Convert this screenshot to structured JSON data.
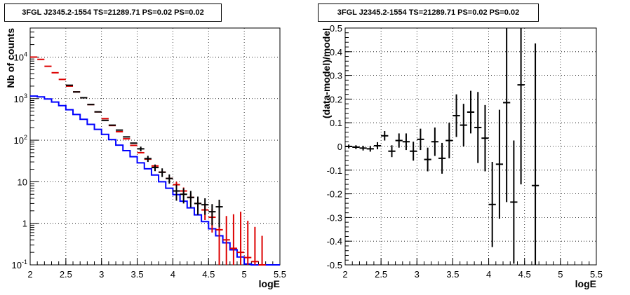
{
  "charts": {
    "left_title": "3FGL J2345.2-1554 TS=21289.71 PS=0.02 PS=0.02",
    "right_title": "3FGL J2345.2-1554 TS=21289.71 PS=0.02 PS=0.02"
  },
  "chart_data": [
    {
      "type": "line",
      "title": "3FGL J2345.2-1554 TS=21289.71 PS=0.02 PS=0.02",
      "xlabel": "logE",
      "ylabel": "Nb of counts",
      "xlim": [
        2,
        5.5
      ],
      "ylim": [
        0.1,
        50000
      ],
      "yscale": "log",
      "grid": true,
      "x_ticks": [
        "2",
        "2.5",
        "3",
        "3.5",
        "4",
        "4.5",
        "5",
        "5.5"
      ],
      "y_ticks": [
        {
          "value": 0.1,
          "base": "10",
          "exp": "-1"
        },
        {
          "value": 1,
          "base": "1",
          "exp": ""
        },
        {
          "value": 10,
          "base": "10",
          "exp": ""
        },
        {
          "value": 100,
          "base": "10",
          "exp": "2"
        },
        {
          "value": 1000,
          "base": "10",
          "exp": "3"
        },
        {
          "value": 10000,
          "base": "10",
          "exp": "4"
        }
      ],
      "bin_edges": [
        2.0,
        2.1,
        2.2,
        2.3,
        2.4,
        2.5,
        2.6,
        2.7,
        2.8,
        2.9,
        3.0,
        3.1,
        3.2,
        3.3,
        3.4,
        3.5,
        3.6,
        3.7,
        3.8,
        3.9,
        4.0,
        4.1,
        4.2,
        4.3,
        4.4,
        4.5,
        4.6,
        4.7,
        4.8,
        4.9,
        5.0,
        5.1,
        5.2,
        5.3,
        5.4,
        5.5
      ],
      "series": [
        {
          "role": "model",
          "color": "#0000ff",
          "values": [
            1150,
            1100,
            980,
            830,
            680,
            540,
            415,
            318,
            240,
            182,
            138,
            103,
            76,
            56,
            40,
            28.5,
            20.5,
            14.5,
            10,
            7,
            4.9,
            3.4,
            2.35,
            1.6,
            1.1,
            0.74,
            0.5,
            0.34,
            0.23,
            0.155,
            0.105,
            0.1,
            0.1,
            0.1,
            0.1
          ]
        },
        {
          "role": "red-points",
          "color": "#dd0000",
          "x": [
            2.05,
            2.15,
            2.25,
            2.35,
            2.45,
            2.55,
            2.65,
            2.75,
            2.85,
            2.95,
            3.05,
            3.15,
            3.25,
            3.35,
            3.45,
            3.55,
            3.65,
            3.75,
            3.85,
            3.95,
            4.05,
            4.15,
            4.25,
            4.35,
            4.45,
            4.55,
            4.65,
            4.75,
            4.85,
            4.95,
            5.05,
            5.15,
            5.25
          ],
          "y": [
            10000,
            8800,
            6000,
            4200,
            2900,
            2000,
            1450,
            1050,
            720,
            480,
            330,
            225,
            160,
            108,
            75,
            50,
            35,
            24,
            17,
            12,
            8.5,
            6,
            4.2,
            3,
            2.1,
            1.4,
            0.7,
            0.4,
            0.25,
            0.2,
            0.15,
            0.12,
            0.1
          ],
          "err_low": [
            0,
            0,
            0,
            0,
            0,
            0,
            0,
            0,
            0,
            0,
            0,
            0,
            0,
            0,
            0,
            0,
            0,
            0,
            0,
            0,
            1.5,
            1.3,
            1,
            1,
            0.9,
            0.8,
            0.6,
            0.35,
            0.2,
            0.17,
            0.13,
            0.1,
            0.08
          ],
          "err_high": [
            0,
            0,
            0,
            0,
            0,
            0,
            0,
            0,
            0,
            0,
            0,
            0,
            0,
            0,
            0,
            0,
            0,
            0,
            0,
            0,
            1.5,
            1.3,
            1,
            1,
            0.9,
            0.8,
            0.6,
            1.1,
            1.4,
            1.7,
            1.0,
            0.7,
            0.4
          ]
        },
        {
          "role": "data",
          "color": "#000000",
          "x": [
            2.55,
            2.65,
            2.75,
            2.85,
            2.95,
            3.05,
            3.15,
            3.25,
            3.35,
            3.45,
            3.55,
            3.65,
            3.75,
            3.85,
            3.95,
            4.05,
            4.15,
            4.25,
            4.35,
            4.45,
            4.55,
            4.65
          ],
          "y": [
            2100,
            1450,
            1050,
            720,
            480,
            300,
            230,
            175,
            120,
            85,
            62,
            36,
            22,
            17,
            12,
            6,
            5,
            4.2,
            3,
            2.8,
            1.9,
            2.5
          ],
          "err_low": [
            0,
            0,
            0,
            0,
            0,
            0,
            0,
            0,
            0,
            0,
            8,
            6,
            4,
            4,
            3,
            2.5,
            2,
            1.8,
            1.4,
            1.2,
            1.0,
            1.7
          ],
          "err_high": [
            0,
            0,
            0,
            0,
            0,
            0,
            0,
            0,
            0,
            0,
            8,
            6,
            4,
            4,
            3,
            2.5,
            2,
            1.8,
            1.4,
            1.2,
            1.0,
            1.2
          ]
        }
      ]
    },
    {
      "type": "scatter",
      "title": "3FGL J2345.2-1554 TS=21289.71 PS=0.02 PS=0.02",
      "xlabel": "logE",
      "ylabel": "(data-model)/model",
      "xlim": [
        2,
        5.5
      ],
      "ylim": [
        -0.5,
        0.5
      ],
      "grid": true,
      "x_ticks": [
        "2",
        "2.5",
        "3",
        "3.5",
        "4",
        "4.5",
        "5",
        "5.5"
      ],
      "y_ticks": [
        "-0.5",
        "-0.4",
        "-0.3",
        "-0.2",
        "-0.1",
        "0",
        "0.1",
        "0.2",
        "0.3",
        "0.4",
        "0.5"
      ],
      "series": [
        {
          "color": "#000000",
          "x": [
            2.05,
            2.15,
            2.25,
            2.35,
            2.45,
            2.55,
            2.65,
            2.75,
            2.85,
            2.95,
            3.05,
            3.15,
            3.25,
            3.35,
            3.45,
            3.55,
            3.65,
            3.75,
            3.85,
            3.95,
            4.05,
            4.15,
            4.25,
            4.35,
            4.45,
            4.65
          ],
          "y": [
            0.0,
            -0.003,
            -0.007,
            -0.01,
            0.003,
            0.045,
            -0.02,
            0.025,
            0.02,
            -0.02,
            0.03,
            -0.055,
            0.02,
            -0.05,
            0.025,
            0.13,
            0.09,
            0.145,
            0.08,
            0.035,
            -0.245,
            -0.075,
            0.185,
            -0.235,
            0.26,
            -0.165
          ],
          "err": [
            0.008,
            0.008,
            0.01,
            0.012,
            0.015,
            0.02,
            0.025,
            0.03,
            0.035,
            0.04,
            0.045,
            0.05,
            0.06,
            0.065,
            0.075,
            0.09,
            0.09,
            0.09,
            0.15,
            0.14,
            0.18,
            0.23,
            0.42,
            0.26,
            0.42,
            0.6
          ]
        }
      ]
    }
  ]
}
